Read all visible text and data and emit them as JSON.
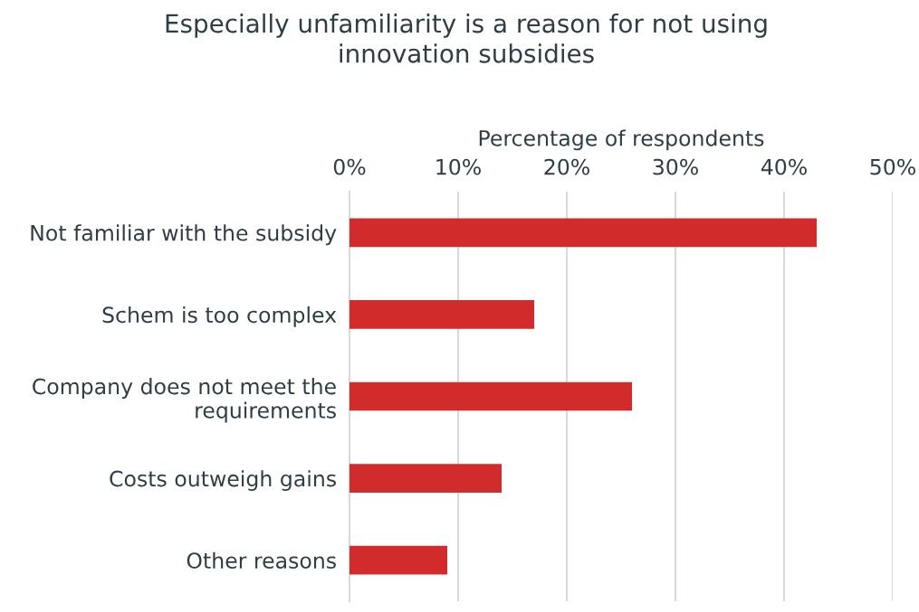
{
  "chart_data": {
    "type": "bar",
    "orientation": "horizontal",
    "title": "Especially unfamiliarity is a reason for not using\ninnovation subsidies",
    "xlabel": "Percentage of respondents",
    "categories": [
      "Not familiar with the subsidy",
      "Schem is too complex",
      "Company does not meet the\nrequirements",
      "Costs outweigh gains",
      "Other reasons"
    ],
    "values": [
      43,
      17,
      26,
      14,
      9
    ],
    "color": "#d22b2b",
    "xlim": [
      0,
      50
    ],
    "xticks": [
      {
        "value": 0,
        "label": "0%"
      },
      {
        "value": 10,
        "label": "10%"
      },
      {
        "value": 20,
        "label": "20%"
      },
      {
        "value": 30,
        "label": "30%"
      },
      {
        "value": 40,
        "label": "40%"
      },
      {
        "value": 50,
        "label": "50%"
      }
    ],
    "grid": "x",
    "legend": false
  }
}
